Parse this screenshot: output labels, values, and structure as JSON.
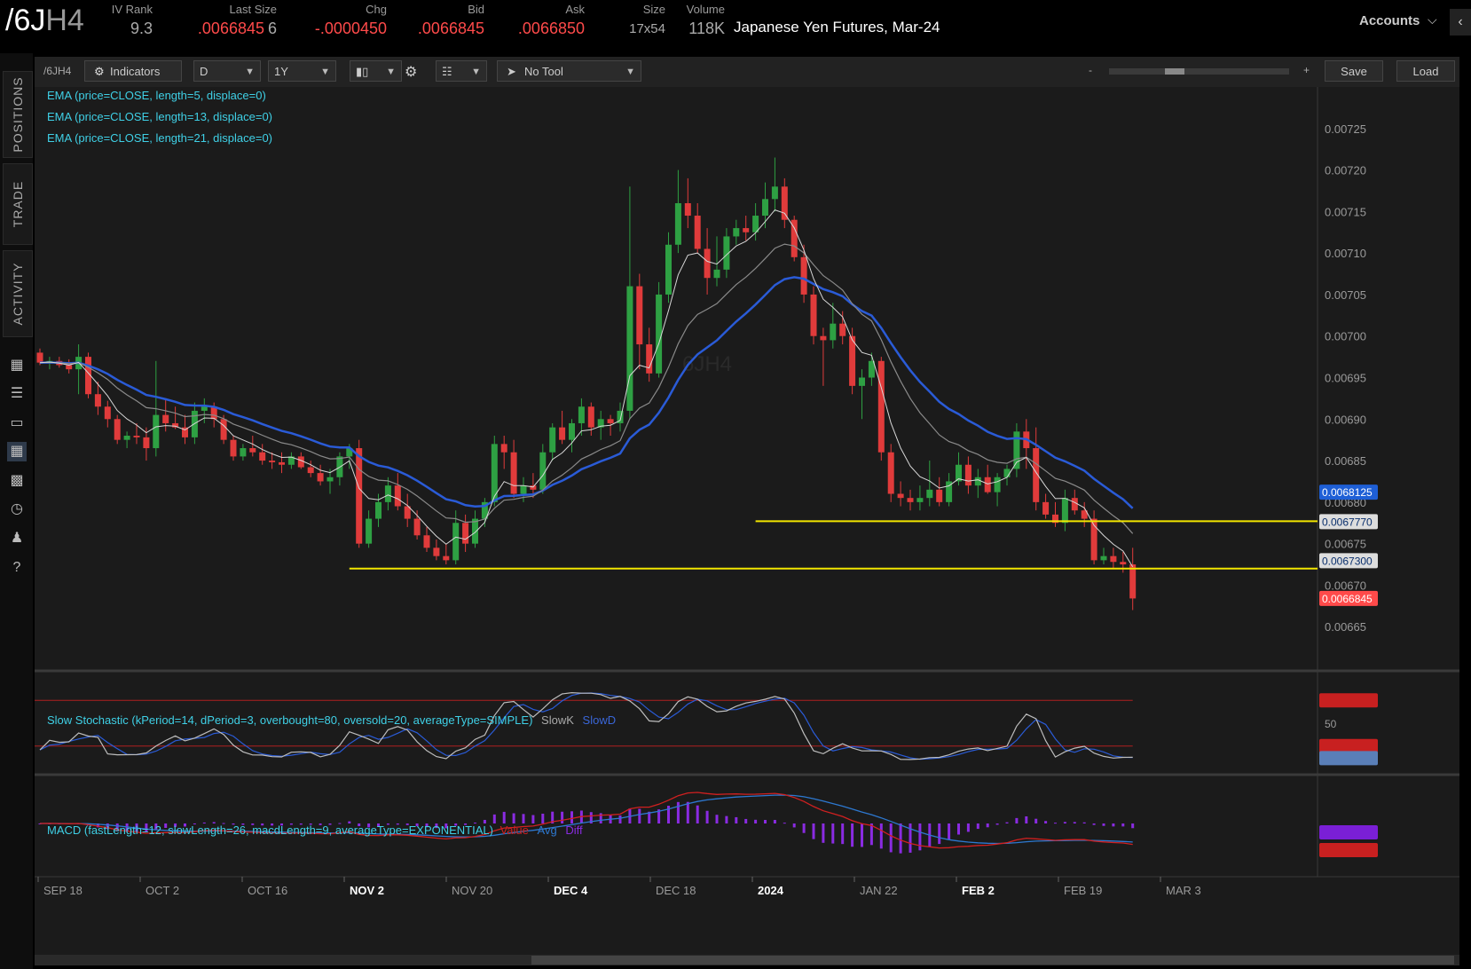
{
  "quote": {
    "symbol_main": "/6J",
    "symbol_suffix": "H4",
    "columns": [
      {
        "label": "IV Rank",
        "value": "9.3",
        "color": "grey"
      },
      {
        "label": "Last Size",
        "value": ".0066845",
        "value2": "6",
        "color": "red"
      },
      {
        "label": "Chg",
        "value": "-.0000450",
        "color": "red"
      },
      {
        "label": "Bid",
        "value": ".0066845",
        "color": "red"
      },
      {
        "label": "Ask",
        "value": ".0066850",
        "color": "red"
      },
      {
        "label": "Size",
        "value": "17x54",
        "color": "grey"
      },
      {
        "label": "Volume",
        "value": "118K",
        "color": "grey"
      }
    ],
    "description": "Japanese Yen Futures, Mar-24",
    "accounts_label": "Accounts"
  },
  "sidebar": {
    "tabs": [
      "POSITIONS",
      "TRADE",
      "ACTIVITY"
    ],
    "icons": [
      "calendar-icon",
      "list-icon",
      "monitor-icon",
      "chart-icon",
      "grid-icon",
      "gauge-icon",
      "people-icon",
      "help-icon"
    ]
  },
  "toolbar": {
    "symbol": "/6JH4",
    "indicators_label": "Indicators",
    "aggregation": "D",
    "timeframe": "1Y",
    "tool": "No Tool",
    "zoom_minus": "-",
    "zoom_plus": "+",
    "save_label": "Save",
    "load_label": "Load"
  },
  "studies": {
    "ema1": "EMA (price=CLOSE, length=5, displace=0)",
    "ema2": "EMA (price=CLOSE, length=13, displace=0)",
    "ema3": "EMA (price=CLOSE, length=21, displace=0)",
    "stoch": "Slow Stochastic (kPeriod=14, dPeriod=3, overbought=80, oversold=20, averageType=SIMPLE)",
    "stoch_k": "SlowK",
    "stoch_d": "SlowD",
    "macd": "MACD (fastLength=12, slowLength=26, macdLength=9, averageType=EXPONENTIAL)",
    "macd_value": "Value",
    "macd_avg": "Avg",
    "macd_diff": "Diff",
    "watermark": "6JH4"
  },
  "chart_data": {
    "type": "candlestick",
    "x_labels": [
      "SEP 18",
      "OCT 2",
      "OCT 16",
      "NOV 2",
      "NOV 20",
      "DEC 4",
      "DEC 18",
      "2024",
      "JAN 22",
      "FEB 2",
      "FEB 19",
      "MAR 3"
    ],
    "y_ticks": [
      "0.00725",
      "0.00720",
      "0.00715",
      "0.00710",
      "0.00705",
      "0.00700",
      "0.00695",
      "0.00690",
      "0.00685",
      "0.00680",
      "0.00675",
      "0.00670",
      "0.00665"
    ],
    "ylim": [
      0.0066,
      0.0073
    ],
    "price_badges": [
      {
        "label": "0.0068125",
        "value": 0.0068125,
        "color": "#1e5fd6"
      },
      {
        "label": "0.0067770",
        "value": 0.006777,
        "color": "#dddddd"
      },
      {
        "label": "0.0067300",
        "value": 0.00673,
        "color": "#dddddd"
      },
      {
        "label": "0.0066845",
        "value": 0.0066845,
        "color": "#ff4a4a"
      }
    ],
    "horizontal_lines": [
      {
        "value": 0.006777,
        "from_index": 74
      },
      {
        "value": 0.00672,
        "from_index": 32
      }
    ],
    "candles": [
      [
        0.00698,
        0.006985,
        0.006965,
        0.006968
      ],
      [
        0.006968,
        0.006975,
        0.00696,
        0.00697
      ],
      [
        0.00697,
        0.006975,
        0.006962,
        0.006965
      ],
      [
        0.006965,
        0.006972,
        0.006955,
        0.00696
      ],
      [
        0.00696,
        0.00699,
        0.00693,
        0.006975
      ],
      [
        0.006975,
        0.00698,
        0.006925,
        0.00693
      ],
      [
        0.00693,
        0.006945,
        0.006905,
        0.006915
      ],
      [
        0.006915,
        0.006922,
        0.00689,
        0.0069
      ],
      [
        0.0069,
        0.006905,
        0.00687,
        0.006875
      ],
      [
        0.006875,
        0.006885,
        0.006865,
        0.00688
      ],
      [
        0.00688,
        0.006895,
        0.00687,
        0.006878
      ],
      [
        0.006878,
        0.00689,
        0.00685,
        0.006865
      ],
      [
        0.006865,
        0.00697,
        0.006855,
        0.006905
      ],
      [
        0.006905,
        0.006925,
        0.006885,
        0.006895
      ],
      [
        0.006895,
        0.006915,
        0.006888,
        0.00689
      ],
      [
        0.00689,
        0.006905,
        0.00687,
        0.006878
      ],
      [
        0.006878,
        0.00692,
        0.00687,
        0.00691
      ],
      [
        0.00691,
        0.006925,
        0.006895,
        0.006915
      ],
      [
        0.006915,
        0.00692,
        0.00689,
        0.0069
      ],
      [
        0.0069,
        0.006905,
        0.00687,
        0.006875
      ],
      [
        0.006875,
        0.00688,
        0.00685,
        0.006855
      ],
      [
        0.006855,
        0.00687,
        0.00685,
        0.006865
      ],
      [
        0.006865,
        0.00688,
        0.006855,
        0.00686
      ],
      [
        0.00686,
        0.00687,
        0.006845,
        0.00685
      ],
      [
        0.00685,
        0.00686,
        0.00684,
        0.006848
      ],
      [
        0.006848,
        0.00686,
        0.006835,
        0.006845
      ],
      [
        0.006845,
        0.00686,
        0.00684,
        0.006855
      ],
      [
        0.006855,
        0.00686,
        0.00684,
        0.006842
      ],
      [
        0.006842,
        0.00685,
        0.00683,
        0.006835
      ],
      [
        0.006835,
        0.006845,
        0.00682,
        0.006825
      ],
      [
        0.006825,
        0.00684,
        0.00681,
        0.00683
      ],
      [
        0.00683,
        0.00686,
        0.00682,
        0.006855
      ],
      [
        0.006855,
        0.00687,
        0.00684,
        0.006865
      ],
      [
        0.006865,
        0.006875,
        0.006745,
        0.00675
      ],
      [
        0.00675,
        0.00679,
        0.006745,
        0.00678
      ],
      [
        0.00678,
        0.00681,
        0.00677,
        0.0068
      ],
      [
        0.0068,
        0.00683,
        0.00679,
        0.00682
      ],
      [
        0.00682,
        0.006835,
        0.00679,
        0.006795
      ],
      [
        0.006795,
        0.00681,
        0.00677,
        0.00678
      ],
      [
        0.00678,
        0.00679,
        0.006755,
        0.00676
      ],
      [
        0.00676,
        0.00677,
        0.00674,
        0.006745
      ],
      [
        0.006745,
        0.006755,
        0.00673,
        0.006735
      ],
      [
        0.006735,
        0.00675,
        0.006725,
        0.00673
      ],
      [
        0.00673,
        0.00679,
        0.006725,
        0.006775
      ],
      [
        0.006775,
        0.006785,
        0.00674,
        0.00675
      ],
      [
        0.00675,
        0.00679,
        0.006745,
        0.00678
      ],
      [
        0.00678,
        0.006805,
        0.00677,
        0.0068
      ],
      [
        0.0068,
        0.00688,
        0.006795,
        0.00687
      ],
      [
        0.00687,
        0.00688,
        0.00684,
        0.00686
      ],
      [
        0.00686,
        0.006875,
        0.006805,
        0.00681
      ],
      [
        0.00681,
        0.00683,
        0.0068,
        0.00682
      ],
      [
        0.00682,
        0.006835,
        0.006805,
        0.006815
      ],
      [
        0.006815,
        0.00687,
        0.00681,
        0.00686
      ],
      [
        0.00686,
        0.006895,
        0.00685,
        0.00689
      ],
      [
        0.00689,
        0.00691,
        0.00687,
        0.006875
      ],
      [
        0.006875,
        0.0069,
        0.00686,
        0.006895
      ],
      [
        0.006895,
        0.006925,
        0.00688,
        0.006915
      ],
      [
        0.006915,
        0.00692,
        0.00688,
        0.00689
      ],
      [
        0.00689,
        0.00691,
        0.006875,
        0.0069
      ],
      [
        0.0069,
        0.006905,
        0.00688,
        0.006895
      ],
      [
        0.006895,
        0.00692,
        0.006885,
        0.00691
      ],
      [
        0.00691,
        0.00718,
        0.0069,
        0.00706
      ],
      [
        0.00706,
        0.007075,
        0.00696,
        0.00699
      ],
      [
        0.00699,
        0.00701,
        0.006945,
        0.006955
      ],
      [
        0.006955,
        0.007065,
        0.00695,
        0.00705
      ],
      [
        0.00705,
        0.007125,
        0.00704,
        0.00711
      ],
      [
        0.00711,
        0.0072,
        0.0071,
        0.00716
      ],
      [
        0.00716,
        0.00719,
        0.00713,
        0.007145
      ],
      [
        0.007145,
        0.00716,
        0.0071,
        0.007105
      ],
      [
        0.007105,
        0.00713,
        0.00705,
        0.00707
      ],
      [
        0.00707,
        0.00712,
        0.00706,
        0.00708
      ],
      [
        0.00708,
        0.00713,
        0.00707,
        0.00712
      ],
      [
        0.00712,
        0.00714,
        0.00711,
        0.00713
      ],
      [
        0.00713,
        0.007145,
        0.007115,
        0.007125
      ],
      [
        0.007125,
        0.00716,
        0.007115,
        0.007145
      ],
      [
        0.007145,
        0.007185,
        0.00713,
        0.007165
      ],
      [
        0.007165,
        0.007215,
        0.00715,
        0.00718
      ],
      [
        0.00718,
        0.00719,
        0.00713,
        0.00714
      ],
      [
        0.00714,
        0.007145,
        0.00709,
        0.007095
      ],
      [
        0.007095,
        0.00711,
        0.00704,
        0.00705
      ],
      [
        0.00705,
        0.00706,
        0.00699,
        0.007
      ],
      [
        0.007,
        0.00701,
        0.00694,
        0.006995
      ],
      [
        0.006995,
        0.00704,
        0.006985,
        0.007015
      ],
      [
        0.007015,
        0.00703,
        0.00699,
        0.007
      ],
      [
        0.007,
        0.00701,
        0.00693,
        0.00694
      ],
      [
        0.00694,
        0.00696,
        0.0069,
        0.00695
      ],
      [
        0.00695,
        0.00698,
        0.00694,
        0.00697
      ],
      [
        0.00697,
        0.006975,
        0.00685,
        0.00686
      ],
      [
        0.00686,
        0.00687,
        0.0068,
        0.00681
      ],
      [
        0.00681,
        0.006825,
        0.006795,
        0.006805
      ],
      [
        0.006805,
        0.006815,
        0.00679,
        0.0068
      ],
      [
        0.0068,
        0.00682,
        0.00679,
        0.006805
      ],
      [
        0.006805,
        0.00685,
        0.006795,
        0.006815
      ],
      [
        0.006815,
        0.00683,
        0.006795,
        0.0068
      ],
      [
        0.0068,
        0.006835,
        0.006795,
        0.006825
      ],
      [
        0.006825,
        0.00686,
        0.00682,
        0.006845
      ],
      [
        0.006845,
        0.006855,
        0.00681,
        0.00682
      ],
      [
        0.00682,
        0.00684,
        0.006805,
        0.00683
      ],
      [
        0.00683,
        0.006845,
        0.00681,
        0.006812
      ],
      [
        0.006812,
        0.006835,
        0.006795,
        0.00683
      ],
      [
        0.00683,
        0.006845,
        0.00682,
        0.00684
      ],
      [
        0.00684,
        0.006895,
        0.00683,
        0.006885
      ],
      [
        0.006885,
        0.0069,
        0.00684,
        0.006865
      ],
      [
        0.006865,
        0.00689,
        0.00679,
        0.0068
      ],
      [
        0.0068,
        0.00681,
        0.00678,
        0.006785
      ],
      [
        0.006785,
        0.0068,
        0.00677,
        0.006775
      ],
      [
        0.006775,
        0.006815,
        0.006765,
        0.006805
      ],
      [
        0.006805,
        0.006815,
        0.006785,
        0.00679
      ],
      [
        0.00679,
        0.0068,
        0.00677,
        0.00678
      ],
      [
        0.00678,
        0.00679,
        0.006725,
        0.00673
      ],
      [
        0.00673,
        0.006745,
        0.006725,
        0.006735
      ],
      [
        0.006735,
        0.006745,
        0.00672,
        0.006728
      ],
      [
        0.006728,
        0.00674,
        0.006715,
        0.006725
      ],
      [
        0.006725,
        0.006745,
        0.00667,
        0.006684
      ]
    ]
  }
}
